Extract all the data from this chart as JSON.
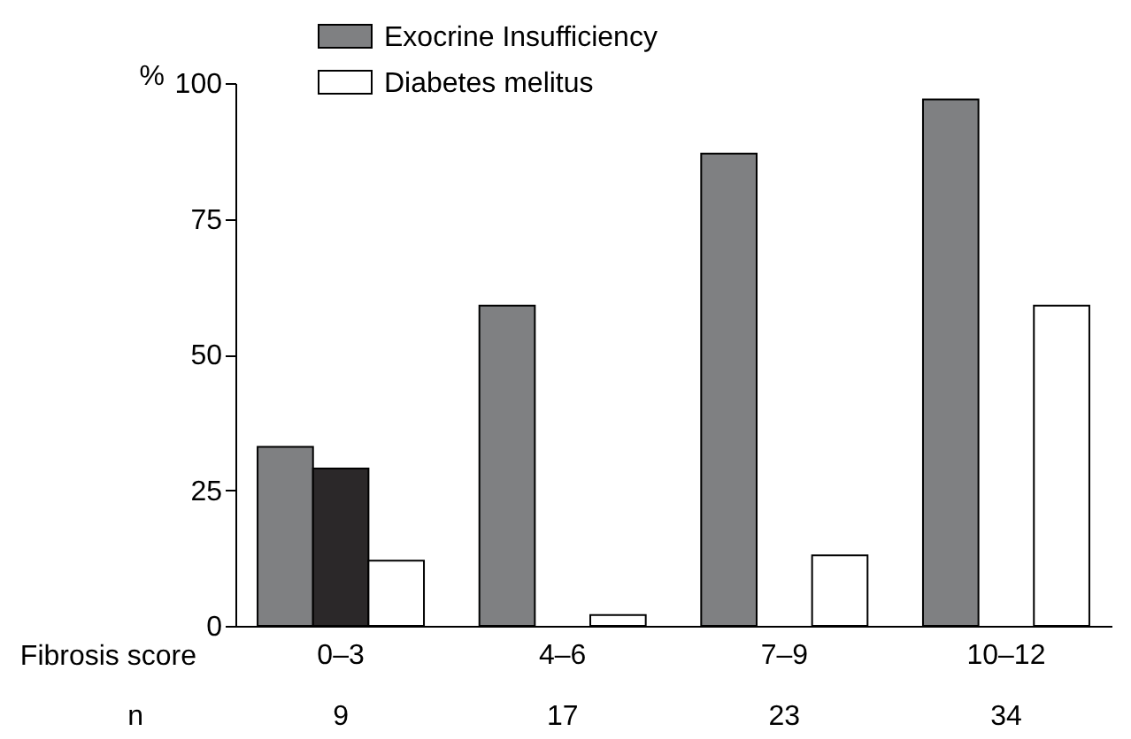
{
  "chart_data": {
    "type": "bar",
    "categories": [
      "0–3",
      "4–6",
      "7–9",
      "10–12"
    ],
    "series": [
      {
        "name": "Exocrine Insufficiency",
        "color": "#7f8082",
        "values": [
          33,
          59,
          87,
          97
        ]
      },
      {
        "color": "#2b2829",
        "values": [
          29,
          null,
          null,
          null
        ]
      },
      {
        "name": "Diabetes melitus",
        "color": "#ffffff",
        "values": [
          12,
          2,
          13,
          59
        ]
      }
    ],
    "xlabel": "Fibrosis score",
    "ylabel": "%",
    "ylim": [
      0,
      100
    ],
    "yticks": [
      0,
      25,
      50,
      75,
      100
    ],
    "annotations": [
      "n",
      "9",
      "17",
      "23",
      "34"
    ],
    "grid": false,
    "legend": "top"
  }
}
